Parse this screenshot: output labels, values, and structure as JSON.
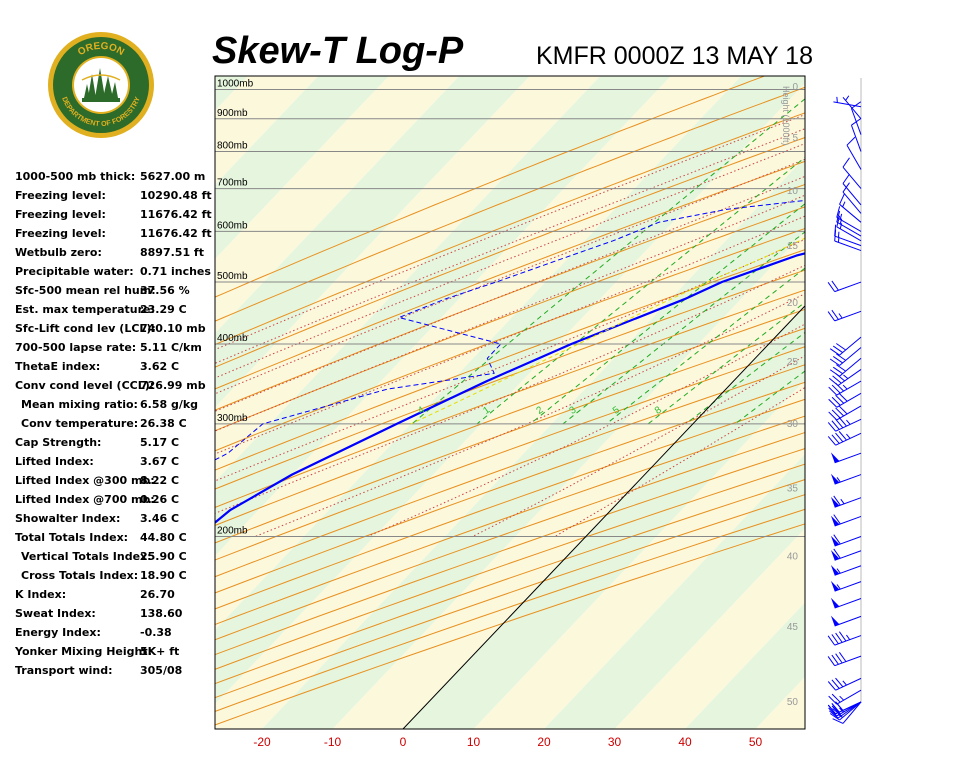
{
  "header": {
    "title": "Skew-T Log-P",
    "station": "KMFR 0000Z 13 MAY 18"
  },
  "logo": {
    "top_text": "OREGON",
    "bottom_text": "DEPARTMENT OF FORESTRY"
  },
  "indices": [
    {
      "label": "1000-500 mb thick:",
      "value": "5627.00 m"
    },
    {
      "label": "Freezing level:",
      "value": "10290.48 ft"
    },
    {
      "label": "Freezing level:",
      "value": "11676.42 ft"
    },
    {
      "label": "Freezing level:",
      "value": "11676.42 ft"
    },
    {
      "label": "Wetbulb zero:",
      "value": "8897.51 ft"
    },
    {
      "label": "Precipitable water:",
      "value": "0.71 inches"
    },
    {
      "label": "Sfc-500 mean rel hum:",
      "value": "37.56 %"
    },
    {
      "label": "Est. max temperature:",
      "value": "23.29 C"
    },
    {
      "label": "Sfc-Lift cond lev (LCL):",
      "value": "740.10 mb"
    },
    {
      "label": "700-500 lapse rate:",
      "value": "5.11 C/km"
    },
    {
      "label": "ThetaE index:",
      "value": "3.62 C"
    },
    {
      "label": "Conv cond level (CCL):",
      "value": "726.99 mb"
    },
    {
      "label": "Mean mixing ratio:",
      "value": "6.58 g/kg",
      "indent": true
    },
    {
      "label": "Conv temperature:",
      "value": "26.38 C",
      "indent": true
    },
    {
      "label": "Cap Strength:",
      "value": "5.17 C"
    },
    {
      "label": "Lifted Index:",
      "value": "3.67 C"
    },
    {
      "label": "Lifted Index @300 mb:",
      "value": "8.22 C"
    },
    {
      "label": "Lifted Index @700 mb:",
      "value": "0.26 C"
    },
    {
      "label": "Showalter Index:",
      "value": "3.46 C"
    },
    {
      "label": "Total Totals Index:",
      "value": "44.80 C"
    },
    {
      "label": "Vertical Totals Index:",
      "value": "25.90 C",
      "indent": true
    },
    {
      "label": "Cross Totals Index:",
      "value": "18.90 C",
      "indent": true
    },
    {
      "label": "K Index:",
      "value": "26.70"
    },
    {
      "label": "Sweat Index:",
      "value": "138.60"
    },
    {
      "label": "Energy Index:",
      "value": "-0.38"
    },
    {
      "label": "Yonker Mixing Height:",
      "value": "5K+ ft"
    },
    {
      "label": "Transport wind:",
      "value": "305/08"
    }
  ],
  "chart_data": {
    "type": "line",
    "title": "Skew-T Log-P",
    "xlabel": "",
    "ylabel": "",
    "x_ticks": [
      "-20",
      "-10",
      "0",
      "10",
      "20",
      "30",
      "40",
      "50"
    ],
    "x_range": [
      -30,
      55
    ],
    "pressure_levels": [
      {
        "p": 1000,
        "label": "1000mb"
      },
      {
        "p": 900,
        "label": "900mb"
      },
      {
        "p": 800,
        "label": "800mb"
      },
      {
        "p": 700,
        "label": "700mb"
      },
      {
        "p": 600,
        "label": "600mb"
      },
      {
        "p": 500,
        "label": "500mb"
      },
      {
        "p": 400,
        "label": "400mb"
      },
      {
        "p": 300,
        "label": "300mb"
      },
      {
        "p": 200,
        "label": "200mb"
      }
    ],
    "height_axis": {
      "label": "Height (1000ft)",
      "ticks": [
        "50",
        "45",
        "40",
        "35",
        "30",
        "25",
        "20",
        "15",
        "10",
        "5",
        "0"
      ]
    },
    "mixing_ratio_labels": [
      "4",
      "1",
      "2",
      "3",
      "5",
      "8"
    ],
    "series": [
      {
        "role": "temperature",
        "color": "#0000ff",
        "points": [
          [
            940,
            30
          ],
          [
            930,
            25
          ],
          [
            900,
            20
          ],
          [
            860,
            15
          ],
          [
            830,
            13
          ],
          [
            800,
            12
          ],
          [
            780,
            11
          ],
          [
            760,
            10
          ],
          [
            730,
            9
          ],
          [
            700,
            8
          ],
          [
            680,
            10
          ],
          [
            660,
            11
          ],
          [
            640,
            8
          ],
          [
            620,
            5
          ],
          [
            600,
            2
          ],
          [
            550,
            -8
          ],
          [
            500,
            -15
          ],
          [
            470,
            -18
          ],
          [
            400,
            -28
          ],
          [
            350,
            -35
          ],
          [
            300,
            -42
          ],
          [
            250,
            -50
          ],
          [
            220,
            -54
          ],
          [
            200,
            -55
          ],
          [
            185,
            -54
          ],
          [
            170,
            -52
          ],
          [
            155,
            -51
          ],
          [
            140,
            -49
          ],
          [
            125,
            -47
          ]
        ]
      },
      {
        "role": "dewpoint",
        "color": "#0000ff",
        "dashed": true,
        "points": [
          [
            940,
            -1
          ],
          [
            900,
            -2
          ],
          [
            870,
            -2
          ],
          [
            850,
            -3
          ],
          [
            800,
            -2
          ],
          [
            790,
            -3
          ],
          [
            770,
            -4
          ],
          [
            750,
            -4
          ],
          [
            740,
            -5
          ],
          [
            730,
            -5
          ],
          [
            700,
            -6
          ],
          [
            680,
            -10
          ],
          [
            650,
            -24
          ],
          [
            620,
            -32
          ],
          [
            580,
            -36
          ],
          [
            550,
            -40
          ],
          [
            500,
            -47
          ],
          [
            470,
            -52
          ],
          [
            440,
            -56
          ],
          [
            400,
            -38
          ],
          [
            380,
            -38
          ],
          [
            360,
            -35
          ],
          [
            340,
            -48
          ],
          [
            300,
            -61
          ],
          [
            270,
            -62
          ],
          [
            250,
            -65
          ],
          [
            220,
            -62
          ],
          [
            200,
            -58
          ],
          [
            185,
            -58
          ],
          [
            170,
            -62
          ],
          [
            160,
            -68
          ],
          [
            150,
            -71
          ],
          [
            135,
            -68
          ],
          [
            125,
            -64
          ]
        ]
      },
      {
        "role": "parcel",
        "color": "#e6dc00",
        "dashed": true,
        "points": [
          [
            940,
            15
          ],
          [
            900,
            13
          ],
          [
            850,
            10
          ],
          [
            800,
            7
          ],
          [
            750,
            4
          ],
          [
            700,
            0
          ],
          [
            650,
            -4
          ],
          [
            600,
            -8
          ],
          [
            550,
            -12
          ],
          [
            500,
            -17
          ],
          [
            450,
            -22
          ],
          [
            400,
            -27
          ],
          [
            350,
            -33
          ],
          [
            320,
            -37
          ],
          [
            300,
            -40
          ]
        ]
      }
    ],
    "winds": [
      [
        80,
        220,
        10
      ],
      [
        85,
        230,
        15
      ],
      [
        90,
        235,
        20
      ],
      [
        95,
        240,
        25
      ],
      [
        100,
        240,
        25
      ],
      [
        105,
        245,
        30
      ],
      [
        110,
        245,
        30
      ],
      [
        115,
        240,
        25
      ],
      [
        120,
        245,
        35
      ],
      [
        130,
        250,
        40
      ],
      [
        140,
        250,
        45
      ],
      [
        150,
        250,
        50
      ],
      [
        160,
        250,
        50
      ],
      [
        170,
        250,
        55
      ],
      [
        180,
        250,
        55
      ],
      [
        190,
        250,
        60
      ],
      [
        200,
        250,
        60
      ],
      [
        215,
        250,
        60
      ],
      [
        230,
        250,
        65
      ],
      [
        250,
        250,
        55
      ],
      [
        270,
        250,
        50
      ],
      [
        290,
        245,
        45
      ],
      [
        305,
        245,
        45
      ],
      [
        320,
        240,
        40
      ],
      [
        335,
        240,
        40
      ],
      [
        350,
        240,
        35
      ],
      [
        365,
        235,
        35
      ],
      [
        380,
        230,
        30
      ],
      [
        395,
        230,
        30
      ],
      [
        410,
        230,
        30
      ],
      [
        450,
        250,
        25
      ],
      [
        500,
        250,
        20
      ],
      [
        560,
        290,
        15
      ],
      [
        570,
        290,
        15
      ],
      [
        580,
        300,
        15
      ],
      [
        590,
        300,
        15
      ],
      [
        600,
        300,
        15
      ],
      [
        620,
        310,
        15
      ],
      [
        640,
        320,
        10
      ],
      [
        660,
        320,
        10
      ],
      [
        700,
        320,
        10
      ],
      [
        750,
        330,
        10
      ],
      [
        800,
        340,
        10
      ],
      [
        850,
        340,
        10
      ],
      [
        900,
        320,
        5
      ],
      [
        940,
        280,
        5
      ]
    ]
  },
  "colors": {
    "temperature": "#0000ff",
    "dewpoint": "#0000ff",
    "parcel": "#e6dc00",
    "isotherm_axis_labels": "#cc0000",
    "dry_adiabat": "#e8901f",
    "moist_adiabat": "#cc4444",
    "mixing_ratio": "#22aa22",
    "band_green": "#e6f6de",
    "band_yellow": "#fbf8dc",
    "isobar": "#888888",
    "barb": "#0000ff",
    "logo_green": "#2d6b2a",
    "logo_gold": "#e0b020"
  }
}
